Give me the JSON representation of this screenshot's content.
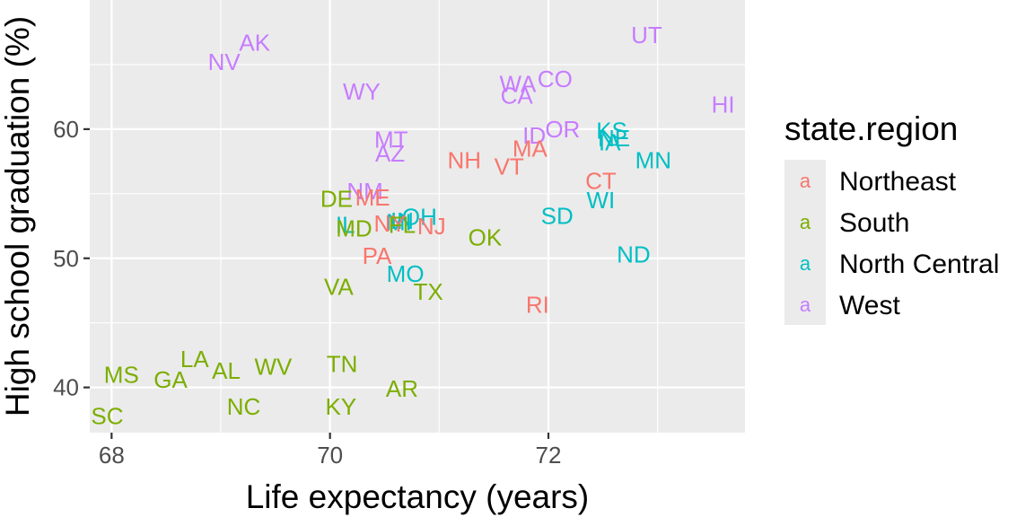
{
  "chart_data": {
    "type": "scatter",
    "xlabel": "Life expectancy (years)",
    "ylabel": "High school graduation (%)",
    "xlim": [
      67.8,
      73.8
    ],
    "ylim": [
      36.5,
      70.0
    ],
    "x_ticks": [
      68,
      70,
      72
    ],
    "y_ticks": [
      40,
      50,
      60
    ],
    "x_tick_labels": [
      "68",
      "70",
      "72"
    ],
    "y_tick_labels": [
      "40",
      "50",
      "60"
    ],
    "grid": true,
    "legend": {
      "title": "state.region",
      "placement": "right",
      "key_glyph": "a",
      "entries": [
        {
          "name": "Northeast",
          "color": "#F8766D"
        },
        {
          "name": "South",
          "color": "#7CAE00"
        },
        {
          "name": "North Central",
          "color": "#00BFC4"
        },
        {
          "name": "West",
          "color": "#C77CFF"
        }
      ]
    },
    "points": [
      {
        "label": "AK",
        "x": 69.31,
        "y": 66.7,
        "region": "West"
      },
      {
        "label": "NV",
        "x": 69.03,
        "y": 65.2,
        "region": "West"
      },
      {
        "label": "UT",
        "x": 72.9,
        "y": 67.3,
        "region": "West"
      },
      {
        "label": "WY",
        "x": 70.29,
        "y": 62.9,
        "region": "West"
      },
      {
        "label": "WA",
        "x": 71.72,
        "y": 63.5,
        "region": "West"
      },
      {
        "label": "CO",
        "x": 72.06,
        "y": 63.9,
        "region": "West"
      },
      {
        "label": "CA",
        "x": 71.71,
        "y": 62.6,
        "region": "West"
      },
      {
        "label": "HI",
        "x": 73.6,
        "y": 61.9,
        "region": "West"
      },
      {
        "label": "ID",
        "x": 71.87,
        "y": 59.5,
        "region": "West"
      },
      {
        "label": "OR",
        "x": 72.13,
        "y": 60.0,
        "region": "West"
      },
      {
        "label": "MT",
        "x": 70.56,
        "y": 59.2,
        "region": "West"
      },
      {
        "label": "AZ",
        "x": 70.55,
        "y": 58.1,
        "region": "West"
      },
      {
        "label": "NM",
        "x": 70.32,
        "y": 55.2,
        "region": "West"
      },
      {
        "label": "KS",
        "x": 72.58,
        "y": 59.9,
        "region": "North Central"
      },
      {
        "label": "NE",
        "x": 72.6,
        "y": 59.3,
        "region": "North Central"
      },
      {
        "label": "IA",
        "x": 72.56,
        "y": 59.0,
        "region": "North Central"
      },
      {
        "label": "MN",
        "x": 72.96,
        "y": 57.6,
        "region": "North Central"
      },
      {
        "label": "WI",
        "x": 72.48,
        "y": 54.5,
        "region": "North Central"
      },
      {
        "label": "SD",
        "x": 72.08,
        "y": 53.3,
        "region": "North Central"
      },
      {
        "label": "ND",
        "x": 72.78,
        "y": 50.3,
        "region": "North Central"
      },
      {
        "label": "OH",
        "x": 70.82,
        "y": 53.2,
        "region": "North Central"
      },
      {
        "label": "MI",
        "x": 70.63,
        "y": 52.8,
        "region": "North Central"
      },
      {
        "label": "IN",
        "x": 70.66,
        "y": 52.9,
        "region": "North Central"
      },
      {
        "label": "IL",
        "x": 70.14,
        "y": 52.6,
        "region": "North Central"
      },
      {
        "label": "MO",
        "x": 70.69,
        "y": 48.8,
        "region": "North Central"
      },
      {
        "label": "NH",
        "x": 71.23,
        "y": 57.6,
        "region": "Northeast"
      },
      {
        "label": "VT",
        "x": 71.64,
        "y": 57.1,
        "region": "Northeast"
      },
      {
        "label": "MA",
        "x": 71.83,
        "y": 58.5,
        "region": "Northeast"
      },
      {
        "label": "CT",
        "x": 72.48,
        "y": 56.0,
        "region": "Northeast"
      },
      {
        "label": "ME",
        "x": 70.39,
        "y": 54.7,
        "region": "Northeast"
      },
      {
        "label": "NY",
        "x": 70.55,
        "y": 52.7,
        "region": "Northeast"
      },
      {
        "label": "NJ",
        "x": 70.93,
        "y": 52.5,
        "region": "Northeast"
      },
      {
        "label": "PA",
        "x": 70.43,
        "y": 50.2,
        "region": "Northeast"
      },
      {
        "label": "RI",
        "x": 71.9,
        "y": 46.4,
        "region": "Northeast"
      },
      {
        "label": "DE",
        "x": 70.06,
        "y": 54.6,
        "region": "South"
      },
      {
        "label": "MD",
        "x": 70.22,
        "y": 52.3,
        "region": "South"
      },
      {
        "label": "FL",
        "x": 70.66,
        "y": 52.6,
        "region": "South"
      },
      {
        "label": "OK",
        "x": 71.42,
        "y": 51.6,
        "region": "South"
      },
      {
        "label": "VA",
        "x": 70.08,
        "y": 47.8,
        "region": "South"
      },
      {
        "label": "TX",
        "x": 70.9,
        "y": 47.4,
        "region": "South"
      },
      {
        "label": "LA",
        "x": 68.76,
        "y": 42.2,
        "region": "South"
      },
      {
        "label": "AL",
        "x": 69.05,
        "y": 41.3,
        "region": "South"
      },
      {
        "label": "WV",
        "x": 69.48,
        "y": 41.6,
        "region": "South"
      },
      {
        "label": "TN",
        "x": 70.11,
        "y": 41.8,
        "region": "South"
      },
      {
        "label": "MS",
        "x": 68.09,
        "y": 41.0,
        "region": "South"
      },
      {
        "label": "GA",
        "x": 68.54,
        "y": 40.6,
        "region": "South"
      },
      {
        "label": "AR",
        "x": 70.66,
        "y": 39.9,
        "region": "South"
      },
      {
        "label": "NC",
        "x": 69.21,
        "y": 38.5,
        "region": "South"
      },
      {
        "label": "KY",
        "x": 70.1,
        "y": 38.5,
        "region": "South"
      },
      {
        "label": "SC",
        "x": 67.96,
        "y": 37.8,
        "region": "South"
      }
    ]
  }
}
